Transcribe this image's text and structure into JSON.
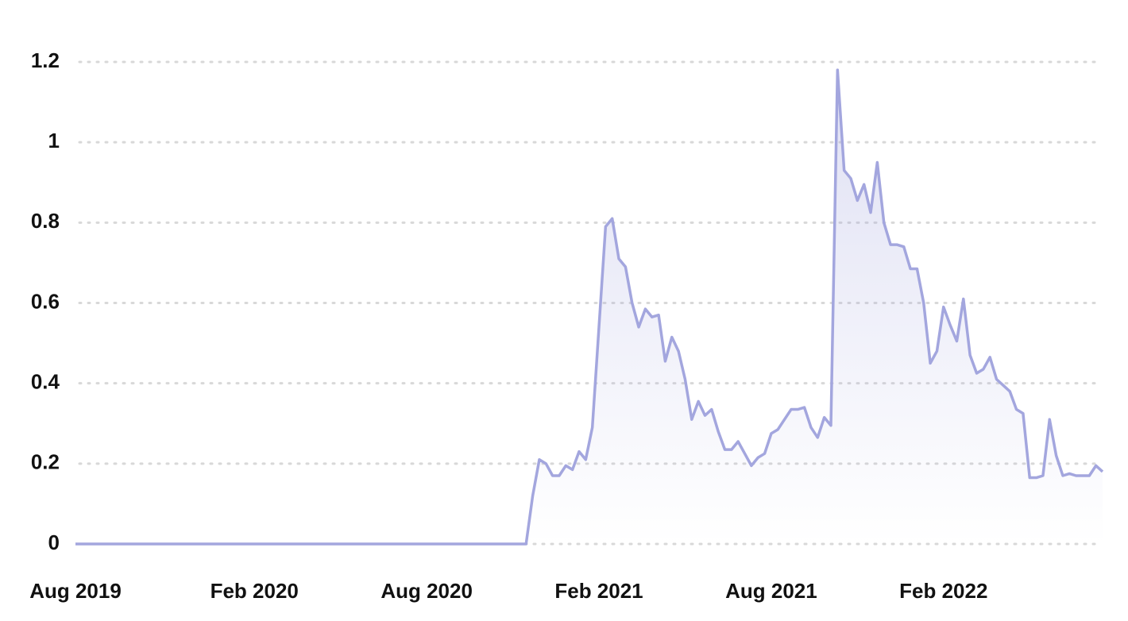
{
  "chart_data": {
    "type": "area",
    "color": "#a3a6de",
    "grid": true,
    "categories": [
      "Aug 2019",
      null,
      null,
      null,
      null,
      null,
      null,
      null,
      null,
      null,
      null,
      null,
      null,
      null,
      null,
      null,
      null,
      null,
      null,
      null,
      null,
      null,
      null,
      null,
      null,
      null,
      null,
      "Feb 2020",
      null,
      null,
      null,
      null,
      null,
      null,
      null,
      null,
      null,
      null,
      null,
      null,
      null,
      null,
      null,
      null,
      null,
      null,
      null,
      null,
      null,
      null,
      null,
      null,
      null,
      "Aug 2020",
      null,
      null,
      null,
      null,
      null,
      null,
      null,
      null,
      null,
      null,
      null,
      null,
      null,
      null,
      null,
      null,
      null,
      null,
      null,
      null,
      null,
      null,
      null,
      null,
      null,
      "Feb 2021",
      null,
      null,
      null,
      null,
      null,
      null,
      null,
      null,
      null,
      null,
      null,
      null,
      null,
      null,
      null,
      null,
      null,
      null,
      null,
      null,
      null,
      null,
      null,
      null,
      null,
      "Aug 2021",
      null,
      null,
      null,
      null,
      null,
      null,
      null,
      null,
      null,
      null,
      null,
      null,
      null,
      null,
      null,
      null,
      null,
      null,
      null,
      null,
      null,
      null,
      null,
      null,
      null,
      "Feb 2022",
      null,
      null,
      null,
      null,
      null,
      null,
      null,
      null,
      null,
      null,
      null,
      null,
      null,
      null,
      null,
      null,
      null,
      null,
      null,
      null,
      null,
      null,
      null,
      null
    ],
    "values": [
      0,
      0,
      0,
      0,
      0,
      0,
      0,
      0,
      0,
      0,
      0,
      0,
      0,
      0,
      0,
      0,
      0,
      0,
      0,
      0,
      0,
      0,
      0,
      0,
      0,
      0,
      0,
      0,
      0,
      0,
      0,
      0,
      0,
      0,
      0,
      0,
      0,
      0,
      0,
      0,
      0,
      0,
      0,
      0,
      0,
      0,
      0,
      0,
      0,
      0,
      0,
      0,
      0,
      0,
      0,
      0,
      0,
      0,
      0,
      0,
      0,
      0,
      0,
      0,
      0,
      0,
      0,
      0,
      0,
      0.12,
      0.21,
      0.2,
      0.17,
      0.17,
      0.195,
      0.185,
      0.23,
      0.21,
      0.29,
      0.54,
      0.79,
      0.81,
      0.71,
      0.69,
      0.6,
      0.54,
      0.585,
      0.565,
      0.57,
      0.455,
      0.515,
      0.48,
      0.41,
      0.31,
      0.355,
      0.32,
      0.335,
      0.28,
      0.235,
      0.235,
      0.255,
      0.225,
      0.195,
      0.215,
      0.225,
      0.275,
      0.285,
      0.31,
      0.335,
      0.335,
      0.34,
      0.29,
      0.265,
      0.315,
      0.295,
      1.18,
      0.93,
      0.91,
      0.855,
      0.895,
      0.825,
      0.95,
      0.8,
      0.745,
      0.745,
      0.74,
      0.685,
      0.685,
      0.6,
      0.45,
      0.48,
      0.59,
      0.545,
      0.505,
      0.61,
      0.47,
      0.425,
      0.435,
      0.465,
      0.41,
      0.395,
      0.38,
      0.335,
      0.325,
      0.165,
      0.165,
      0.17,
      0.31,
      0.22,
      0.17,
      0.175,
      0.17,
      0.17,
      0.17,
      0.195,
      0.18
    ],
    "ylim": [
      0,
      1.2
    ],
    "yticks": [
      0,
      0.2,
      0.4,
      0.6,
      0.8,
      1,
      1.2
    ]
  }
}
